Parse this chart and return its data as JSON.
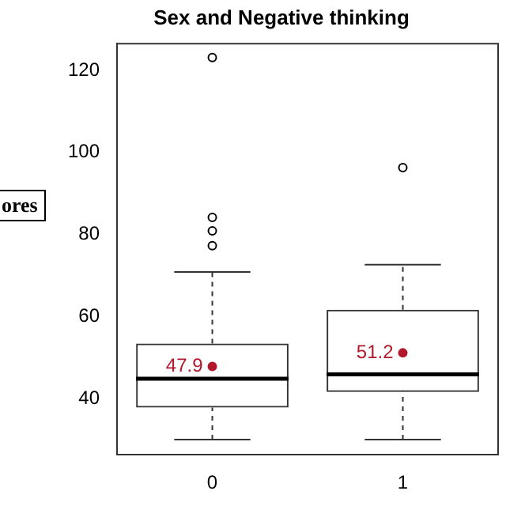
{
  "chart_data": {
    "type": "box",
    "title": "Sex and Negative thinking",
    "categories": [
      "0",
      "1"
    ],
    "boxes": [
      {
        "low": 30.1,
        "q1": 37.9,
        "median": 44.9,
        "q3": 53.5,
        "high": 70.9,
        "outliers": [
          123.1,
          84.2,
          80.9,
          77.3
        ]
      },
      {
        "low": 30.1,
        "q1": 41.7,
        "median": 46.0,
        "q3": 61.7,
        "high": 72.7,
        "outliers": [
          96.3
        ]
      }
    ],
    "color": "#333333",
    "series": [
      {
        "type": "scatter",
        "x": [
          "0",
          "1"
        ],
        "values": [
          47.9,
          51.2
        ],
        "value_labels": [
          "47.9",
          "51.2"
        ],
        "color": "#b2182b"
      }
    ],
    "ylim": [
      26.4,
      126.5
    ],
    "yticks": [
      40,
      60,
      80,
      100,
      120
    ],
    "grid": false,
    "legend": false,
    "annotations": [
      "ores"
    ]
  }
}
